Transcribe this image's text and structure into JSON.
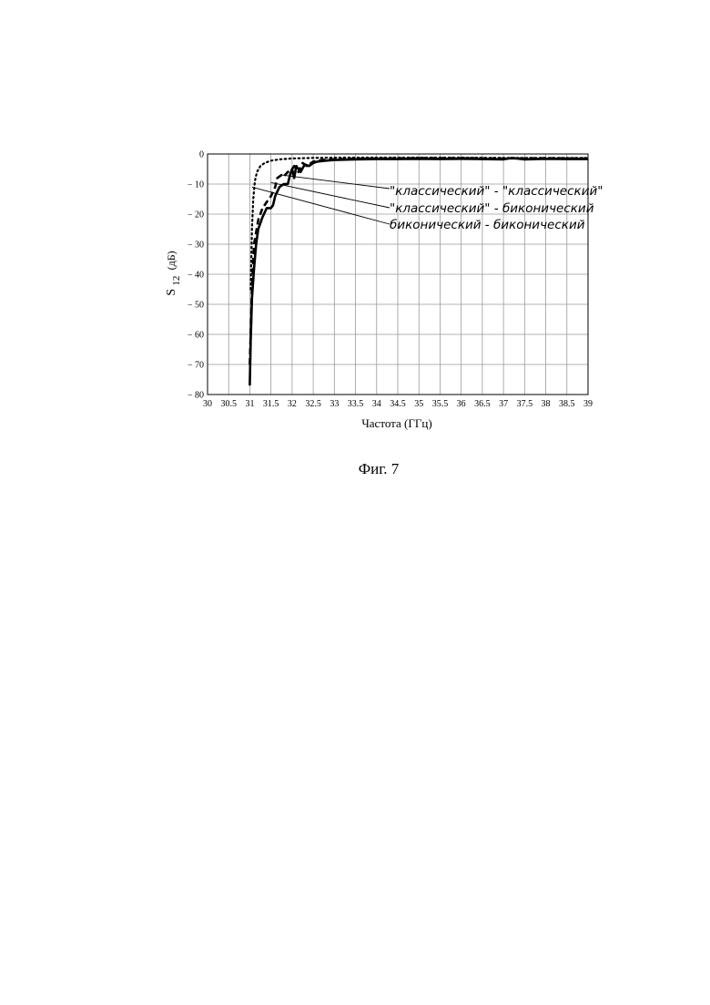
{
  "figure_caption": "Фиг. 7",
  "chart_data": {
    "type": "line",
    "xlabel": "Частота (ГГц)",
    "ylabel_main": "S",
    "ylabel_sub": "12",
    "ylabel_unit": "(дБ)",
    "xlim": [
      30,
      39
    ],
    "ylim": [
      -80,
      0
    ],
    "grid": true,
    "x_ticks": [
      30,
      30.5,
      31,
      31.5,
      32,
      32.5,
      33,
      33.5,
      34,
      34.5,
      35,
      35.5,
      36,
      36.5,
      37,
      37.5,
      38,
      38.5,
      39
    ],
    "y_ticks": [
      0,
      -10,
      -20,
      -30,
      -40,
      -50,
      -60,
      -70,
      -80
    ],
    "y_tick_labels": [
      "0",
      "− 10",
      "− 20",
      "− 30",
      "− 40",
      "− 50",
      "− 60",
      "− 70",
      "− 80"
    ],
    "series": [
      {
        "name": "\"классический\" - \"классический\"",
        "style": "dotted",
        "x": [
          31.02,
          31.05,
          31.08,
          31.12,
          31.17,
          31.25,
          31.35,
          31.5,
          31.7,
          32.0,
          32.5,
          33,
          34,
          35,
          36,
          37,
          38,
          39
        ],
        "y": [
          -45,
          -25,
          -15,
          -9,
          -6,
          -4,
          -3,
          -2.2,
          -1.8,
          -1.5,
          -1.3,
          -1.2,
          -1.2,
          -1.2,
          -1.2,
          -1.3,
          -1.3,
          -1.3
        ]
      },
      {
        "name": "\"классический\" - биконический",
        "style": "dashed",
        "x": [
          31.0,
          31.05,
          31.1,
          31.2,
          31.3,
          31.4,
          31.5,
          31.6,
          31.65,
          31.75,
          31.8,
          31.9,
          32.0,
          32.05,
          32.15,
          32.25,
          32.35,
          32.5,
          32.7,
          33,
          33.5,
          34,
          35,
          36,
          37,
          38,
          39
        ],
        "y": [
          -70,
          -45,
          -30,
          -22,
          -18,
          -16,
          -14,
          -11,
          -8,
          -7,
          -7.5,
          -6,
          -5,
          -4,
          -6,
          -3,
          -4,
          -2.5,
          -2,
          -1.8,
          -1.6,
          -1.5,
          -1.4,
          -1.4,
          -1.5,
          -1.4,
          -1.5
        ]
      },
      {
        "name": "биконический - биконический",
        "style": "solid",
        "x": [
          31.0,
          31.02,
          31.05,
          31.1,
          31.15,
          31.2,
          31.3,
          31.4,
          31.5,
          31.55,
          31.6,
          31.7,
          31.8,
          31.85,
          31.9,
          31.95,
          32.0,
          32.05,
          32.1,
          32.2,
          32.3,
          32.4,
          32.5,
          32.6,
          32.8,
          33,
          33.5,
          34,
          34.5,
          35,
          35.5,
          36,
          36.5,
          37,
          37.2,
          37.5,
          38,
          38.5,
          39
        ],
        "y": [
          -77,
          -62,
          -48,
          -38,
          -30,
          -25,
          -21,
          -18,
          -18,
          -17,
          -14,
          -11,
          -10,
          -10,
          -10,
          -7,
          -5,
          -8,
          -4,
          -6,
          -3.5,
          -4,
          -3,
          -2.5,
          -2.2,
          -2,
          -1.8,
          -1.7,
          -1.7,
          -1.6,
          -1.7,
          -1.6,
          -1.7,
          -1.8,
          -1.3,
          -1.8,
          -1.6,
          -1.7,
          -1.7
        ]
      }
    ]
  }
}
